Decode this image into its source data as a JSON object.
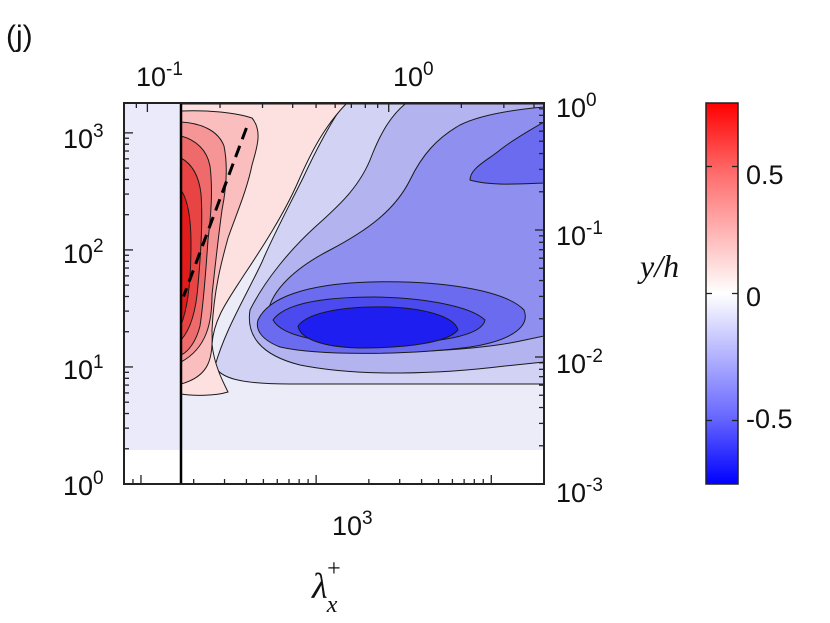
{
  "panel_label": "(j)",
  "chart_data": {
    "type": "heatmap",
    "title": "",
    "xlabel": "λ",
    "xlabel_sub": "x",
    "xlabel_sup": "+",
    "ylabel": "",
    "x_axis": {
      "scale": "log",
      "range": [
        80,
        20000
      ],
      "ticks": [
        {
          "value": 1000,
          "base": "10",
          "exp": "3"
        }
      ]
    },
    "x_axis_top": {
      "scale": "log",
      "range": [
        0.08,
        4.4
      ],
      "ticks": [
        {
          "value": 0.1,
          "base": "10",
          "exp": "-1"
        },
        {
          "value": 1,
          "base": "10",
          "exp": "0"
        }
      ]
    },
    "y_axis_left": {
      "scale": "log",
      "range": [
        1,
        1800
      ],
      "ticks": [
        {
          "value": 1,
          "base": "10",
          "exp": "0"
        },
        {
          "value": 10,
          "base": "10",
          "exp": "1"
        },
        {
          "value": 100,
          "base": "10",
          "exp": "2"
        },
        {
          "value": 1000,
          "base": "10",
          "exp": "3"
        }
      ]
    },
    "y_axis_right": {
      "scale": "log",
      "range": [
        0.001,
        1
      ],
      "ticks": [
        {
          "value": 0.001,
          "base": "10",
          "exp": "-3"
        },
        {
          "value": 0.01,
          "base": "10",
          "exp": "-2"
        },
        {
          "value": 0.1,
          "base": "10",
          "exp": "-1"
        },
        {
          "value": 1,
          "base": "10",
          "exp": "0"
        }
      ]
    },
    "colorbar": {
      "label": "y/h",
      "range": [
        -0.75,
        0.75
      ],
      "colormap": "blue-white-red",
      "colors": {
        "low": "#0000ff",
        "mid": "#ffffff",
        "high": "#ff0000"
      },
      "ticks": [
        {
          "value": 0.5,
          "label": "0.5"
        },
        {
          "value": 0,
          "label": "0"
        },
        {
          "value": -0.5,
          "label": "-0.5"
        }
      ]
    },
    "lower_cutoff_y": 2,
    "vertical_line_x": 130,
    "dashed_line": {
      "x": [
        400,
        175
      ],
      "y": [
        1100,
        40
      ]
    },
    "regions": [
      {
        "level": "positive",
        "description": "red lobe near lambda_x+ 130-500, y+ 7-1800",
        "peak": 0.7
      },
      {
        "level": "negative",
        "description": "blue lobe around lambda_x+ 1000-20000, y+ 5-1800",
        "peak": -0.75,
        "peak_location": {
          "x": 1200,
          "y": 20
        }
      }
    ],
    "grid": false,
    "legend": "none"
  }
}
